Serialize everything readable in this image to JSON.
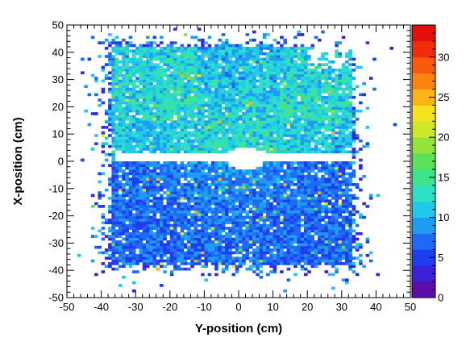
{
  "chart_data": {
    "type": "heatmap",
    "title": "",
    "xlabel": "Y-position (cm)",
    "ylabel": "X-position (cm)",
    "xlim": [
      -50,
      50
    ],
    "ylim": [
      -50,
      50
    ],
    "x_ticks": [
      -50,
      -40,
      -30,
      -20,
      -10,
      0,
      10,
      20,
      30,
      40,
      50
    ],
    "y_ticks": [
      -50,
      -40,
      -30,
      -20,
      -10,
      0,
      10,
      20,
      30,
      40,
      50
    ],
    "color_scale": {
      "min": 0,
      "max": 34,
      "ticks": [
        0,
        5,
        10,
        15,
        20,
        25,
        30
      ],
      "colors": [
        "#5b0ea8",
        "#3b22d6",
        "#1f3df0",
        "#1f6af5",
        "#1f9cf2",
        "#20c8ea",
        "#2ee0c4",
        "#3fe38c",
        "#5ce25a",
        "#93e33a",
        "#cfe72a",
        "#f7e21f",
        "#fbb416",
        "#fb8410",
        "#f95a0d",
        "#f12c0b",
        "#e5100d"
      ]
    },
    "detector_extent": {
      "x_range": [
        -37,
        33
      ],
      "y_range": [
        -38,
        42
      ]
    },
    "beam_gap": {
      "y_range": [
        0,
        3
      ],
      "x_range": [
        -36,
        33
      ]
    },
    "central_hole": {
      "center": [
        2,
        1
      ],
      "radius_x": 5.5,
      "radius_y": 4.5
    }
  }
}
